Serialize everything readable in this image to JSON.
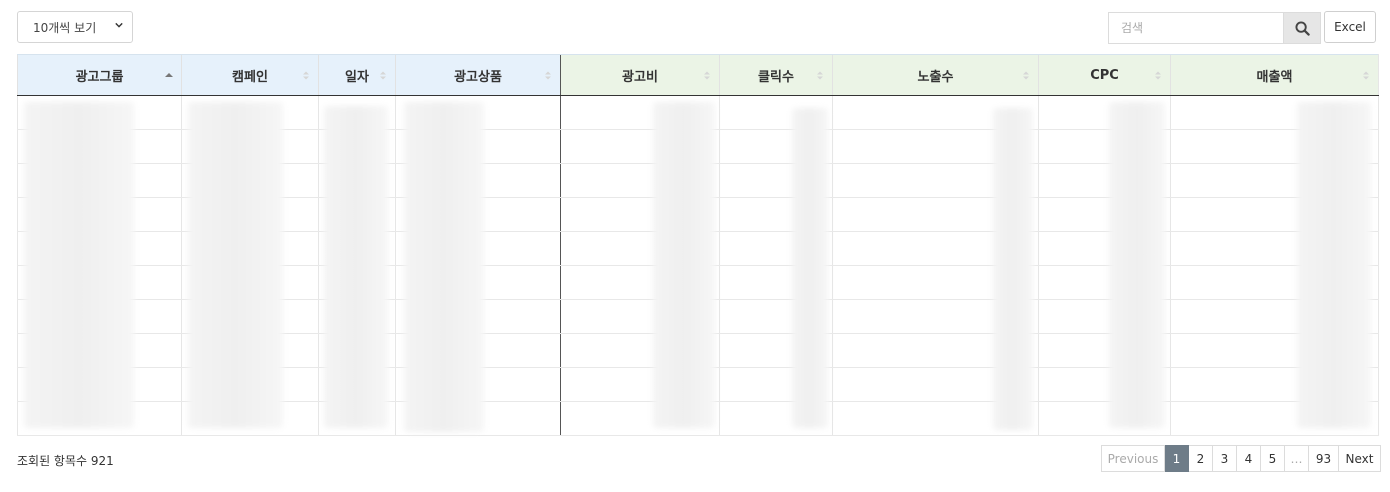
{
  "toolbar": {
    "page_size_label": "10개씩 보기",
    "search_placeholder": "검색",
    "excel_label": "Excel"
  },
  "table": {
    "columns": [
      {
        "label": "광고그룹",
        "group": "blue",
        "sort": "asc"
      },
      {
        "label": "캠페인",
        "group": "blue",
        "sort": "none"
      },
      {
        "label": "일자",
        "group": "blue",
        "sort": "none"
      },
      {
        "label": "광고상품",
        "group": "blue",
        "sort": "none"
      },
      {
        "label": "광고비",
        "group": "green",
        "sort": "none"
      },
      {
        "label": "클릭수",
        "group": "green",
        "sort": "none"
      },
      {
        "label": "노출수",
        "group": "green",
        "sort": "none"
      },
      {
        "label": "CPC",
        "group": "green",
        "sort": "none"
      },
      {
        "label": "매출액",
        "group": "green",
        "sort": "none"
      }
    ],
    "header_colors": {
      "blue": "#e6f1fb",
      "green": "#ebf4e6"
    }
  },
  "footer": {
    "count_text": "조회된 항목수 921"
  },
  "pagination": {
    "previous": "Previous",
    "pages": [
      "1",
      "2",
      "3",
      "4",
      "5",
      "…",
      "93"
    ],
    "active": "1",
    "next": "Next"
  }
}
